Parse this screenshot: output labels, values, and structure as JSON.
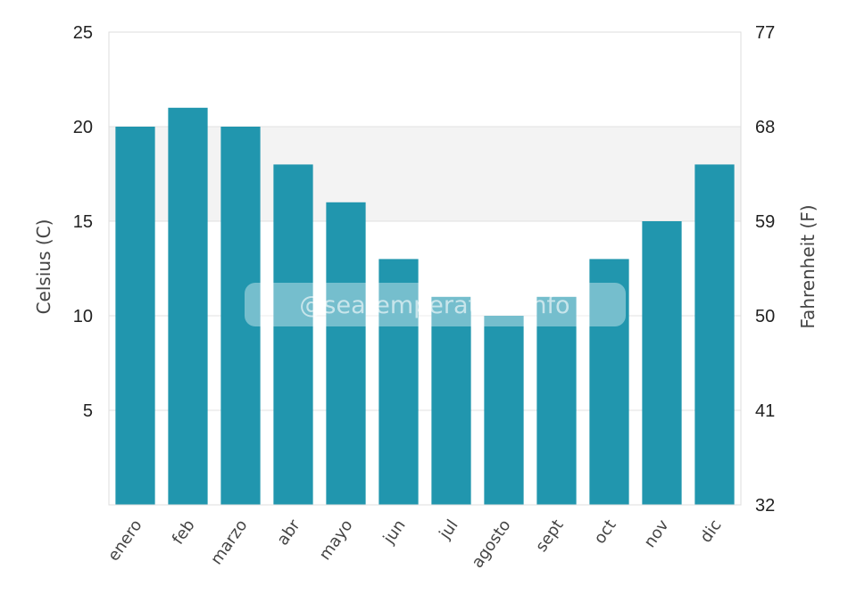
{
  "chart_data": {
    "type": "bar",
    "categories": [
      "enero",
      "feb",
      "marzo",
      "abr",
      "mayo",
      "jun",
      "jul",
      "agosto",
      "sept",
      "oct",
      "nov",
      "dic"
    ],
    "values": [
      20,
      21,
      20,
      18,
      16,
      13,
      11,
      10,
      11,
      13,
      15,
      18
    ],
    "ylabel": "Celsius (C)",
    "ylabel_right": "Fahrenheit (F)",
    "ylim": [
      0,
      25
    ],
    "yticks": [
      "5",
      "10",
      "15",
      "20",
      "25"
    ],
    "ylim_right": [
      32,
      77
    ],
    "yticks_right": [
      "32",
      "41",
      "50",
      "59",
      "68",
      "77"
    ],
    "grid": true,
    "colors": {
      "bar": "#2196ae",
      "band": "#f3f3f3",
      "grid": "#e2e2e2",
      "frame": "#dddddd"
    }
  },
  "watermark": "@seatemperature.info"
}
